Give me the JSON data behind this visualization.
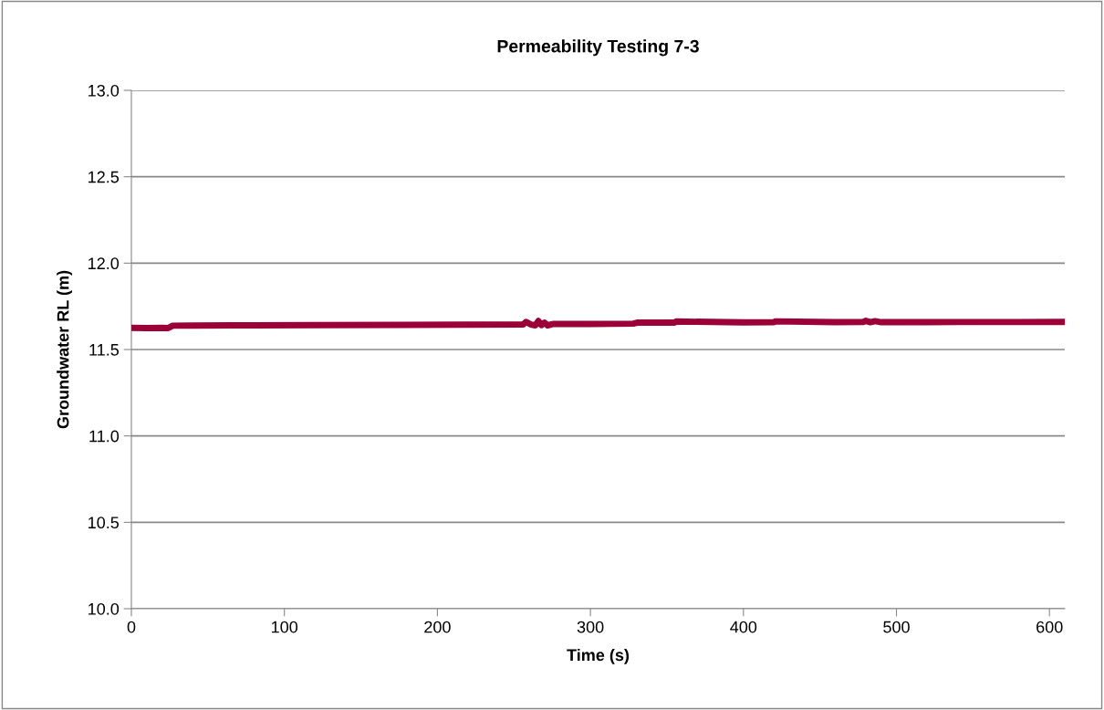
{
  "chart_data": {
    "type": "line",
    "title": "Permeability Testing 7-3",
    "xlabel": "Time (s)",
    "ylabel": "Groundwater RL (m)",
    "series": [
      {
        "color": "#9b0036",
        "x": [
          0,
          10,
          20,
          24,
          27,
          40,
          80,
          120,
          180,
          220,
          256,
          258,
          261,
          264,
          266,
          268,
          270,
          272,
          276,
          300,
          328,
          331,
          355,
          356,
          400,
          420,
          421,
          460,
          478,
          480,
          483,
          486,
          490,
          540,
          580,
          610
        ],
        "values": [
          11.625,
          11.624,
          11.625,
          11.624,
          11.638,
          11.639,
          11.64,
          11.641,
          11.643,
          11.644,
          11.645,
          11.66,
          11.645,
          11.64,
          11.665,
          11.642,
          11.655,
          11.64,
          11.648,
          11.648,
          11.65,
          11.656,
          11.656,
          11.662,
          11.657,
          11.658,
          11.663,
          11.658,
          11.659,
          11.666,
          11.658,
          11.664,
          11.658,
          11.659,
          11.659,
          11.66
        ]
      }
    ],
    "xlim": [
      0,
      610
    ],
    "xticks": [
      0,
      100,
      200,
      300,
      400,
      500,
      600
    ],
    "ylim": [
      10,
      13
    ],
    "yticks": [
      {
        "value": 10,
        "label": "10.0"
      },
      {
        "value": 10.5,
        "label": "10.5"
      },
      {
        "value": 11,
        "label": "11.0"
      },
      {
        "value": 11.5,
        "label": "11.5"
      },
      {
        "value": 12,
        "label": "12.0"
      },
      {
        "value": 12.5,
        "label": "12.5"
      },
      {
        "value": 13,
        "label": "13.0"
      }
    ],
    "grid": "y",
    "legend": false,
    "marker": "none",
    "line_style": "solid"
  }
}
